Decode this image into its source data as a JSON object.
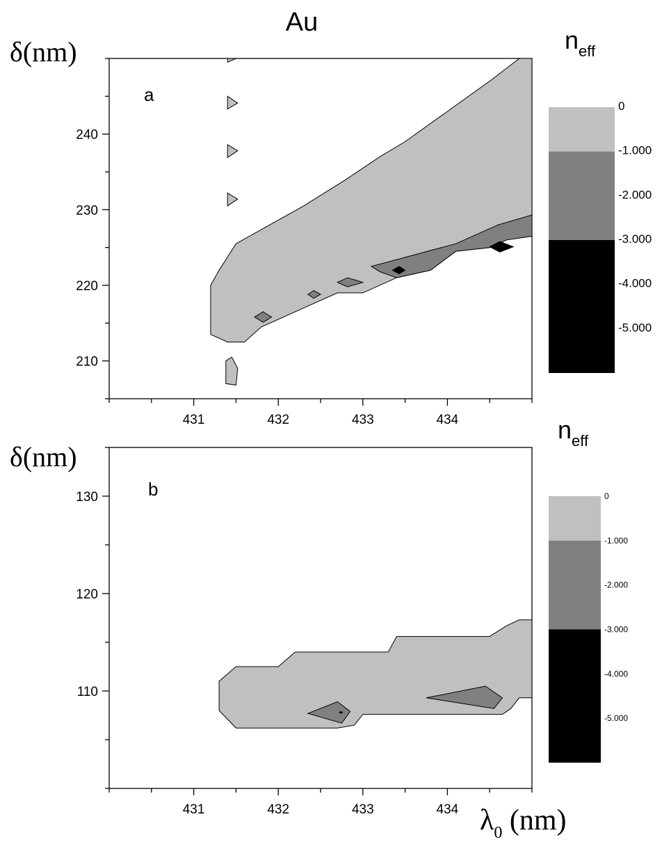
{
  "title": "Au",
  "chart_data": [
    {
      "type": "contour",
      "panel_label": "a",
      "xlabel": "",
      "ylabel": "δ(nm)",
      "xlim": [
        430.0,
        435.0
      ],
      "ylim": [
        205.0,
        250.0
      ],
      "x_ticks": [
        431,
        432,
        433,
        434
      ],
      "y_ticks": [
        210,
        220,
        230,
        240
      ],
      "colorbar": {
        "title": "n",
        "title_sub": "eff",
        "labels": [
          "0",
          "-1.000",
          "-2.000",
          "-3.000",
          "-4.000",
          "-5.000"
        ],
        "bands": [
          {
            "from": 0,
            "to": -1,
            "color": "#c0c0c0"
          },
          {
            "from": -1,
            "to": -3,
            "color": "#808080"
          },
          {
            "from": -3,
            "to": -6,
            "color": "#000000"
          }
        ]
      },
      "regions": [
        {
          "level": "0 to -1",
          "color": "#c0c0c0",
          "points": [
            [
              431.2,
              213.5
            ],
            [
              431.2,
              220
            ],
            [
              431.3,
              222
            ],
            [
              431.5,
              225.5
            ],
            [
              431.9,
              228
            ],
            [
              432.3,
              230.5
            ],
            [
              432.8,
              234
            ],
            [
              433.2,
              237
            ],
            [
              433.5,
              239
            ],
            [
              434.0,
              243
            ],
            [
              434.5,
              247
            ],
            [
              434.85,
              250
            ],
            [
              435.0,
              250
            ],
            [
              435.0,
              226.5
            ],
            [
              434.7,
              226
            ],
            [
              434.5,
              225
            ],
            [
              434.1,
              224.5
            ],
            [
              433.8,
              222
            ],
            [
              433.4,
              221
            ],
            [
              433.0,
              219
            ],
            [
              432.7,
              219
            ],
            [
              432.3,
              217
            ],
            [
              431.8,
              214.5
            ],
            [
              431.6,
              212.5
            ],
            [
              431.4,
              212.5
            ]
          ]
        },
        {
          "level": "0 to -1",
          "color": "#c0c0c0",
          "points": [
            [
              431.38,
              207
            ],
            [
              431.38,
              210
            ],
            [
              431.45,
              210.5
            ],
            [
              431.52,
              209
            ],
            [
              431.5,
              206.8
            ]
          ]
        },
        {
          "level": "0 to -1",
          "color": "#c0c0c0",
          "points": [
            [
              431.4,
              249.5
            ],
            [
              431.5,
              250
            ],
            [
              431.4,
              250
            ]
          ]
        },
        {
          "level": "0 to -1",
          "color": "#c0c0c0",
          "points": [
            [
              431.4,
              243.3
            ],
            [
              431.4,
              245
            ],
            [
              431.52,
              244.1
            ]
          ]
        },
        {
          "level": "0 to -1",
          "color": "#c0c0c0",
          "points": [
            [
              431.4,
              236.9
            ],
            [
              431.4,
              238.6
            ],
            [
              431.52,
              237.8
            ]
          ]
        },
        {
          "level": "0 to -1",
          "color": "#c0c0c0",
          "points": [
            [
              431.4,
              230.5
            ],
            [
              431.4,
              232.2
            ],
            [
              431.52,
              231.4
            ]
          ]
        },
        {
          "level": "-1 to -3",
          "color": "#808080",
          "points": [
            [
              433.1,
              222.5
            ],
            [
              433.6,
              224
            ],
            [
              434.1,
              225.5
            ],
            [
              434.6,
              228
            ],
            [
              435.0,
              229.3
            ],
            [
              435.0,
              226.5
            ],
            [
              434.7,
              226
            ],
            [
              434.5,
              225
            ],
            [
              434.1,
              224.5
            ],
            [
              433.8,
              222
            ],
            [
              433.4,
              221
            ],
            [
              433.2,
              221.8
            ]
          ]
        },
        {
          "level": "-1 to -3",
          "color": "#808080",
          "points": [
            [
              431.72,
              215.8
            ],
            [
              431.82,
              216.5
            ],
            [
              431.92,
              215.8
            ],
            [
              431.82,
              215.1
            ]
          ]
        },
        {
          "level": "-1 to -3",
          "color": "#808080",
          "points": [
            [
              432.35,
              218.8
            ],
            [
              432.42,
              219.3
            ],
            [
              432.5,
              218.8
            ],
            [
              432.42,
              218.3
            ]
          ]
        },
        {
          "level": "-1 to -3",
          "color": "#808080",
          "points": [
            [
              432.7,
              220.4
            ],
            [
              432.82,
              221
            ],
            [
              433.0,
              220.4
            ],
            [
              432.82,
              219.8
            ]
          ]
        },
        {
          "level": "-3 to -6",
          "color": "#000000",
          "points": [
            [
              433.35,
              222
            ],
            [
              433.43,
              222.5
            ],
            [
              433.5,
              222
            ],
            [
              433.43,
              221.5
            ]
          ]
        },
        {
          "level": "-3 to -6",
          "color": "#000000",
          "points": [
            [
              434.5,
              225.1
            ],
            [
              434.62,
              225.8
            ],
            [
              434.78,
              225.1
            ],
            [
              434.62,
              224.4
            ]
          ]
        }
      ]
    },
    {
      "type": "contour",
      "panel_label": "b",
      "xlabel": "λ",
      "xlabel_sub": "0",
      "xlabel_unit": " (nm)",
      "ylabel": "δ(nm)",
      "xlim": [
        430.0,
        435.0
      ],
      "ylim": [
        100.0,
        135.0
      ],
      "x_ticks": [
        431,
        432,
        433,
        434
      ],
      "y_ticks": [
        110,
        120,
        130
      ],
      "colorbar": {
        "title": "n",
        "title_sub": "eff",
        "labels": [
          "0",
          "-1.000",
          "-2.000",
          "-3.000",
          "-4.000",
          "-5.000"
        ],
        "bands": [
          {
            "from": 0,
            "to": -1,
            "color": "#c0c0c0"
          },
          {
            "from": -1,
            "to": -3,
            "color": "#808080"
          },
          {
            "from": -3,
            "to": -6,
            "color": "#000000"
          }
        ]
      },
      "regions": [
        {
          "level": "0 to -1",
          "color": "#c0c0c0",
          "points": [
            [
              431.3,
              108
            ],
            [
              431.3,
              111
            ],
            [
              431.5,
              112.5
            ],
            [
              432.0,
              112.5
            ],
            [
              432.2,
              114
            ],
            [
              433.3,
              114
            ],
            [
              433.4,
              115.6
            ],
            [
              434.5,
              115.6
            ],
            [
              434.7,
              116.7
            ],
            [
              434.85,
              117.3
            ],
            [
              435.0,
              117.3
            ],
            [
              435.0,
              109.3
            ],
            [
              434.85,
              109.3
            ],
            [
              434.75,
              108.2
            ],
            [
              434.65,
              107.6
            ],
            [
              433.0,
              107.6
            ],
            [
              432.9,
              106.5
            ],
            [
              432.7,
              106.2
            ],
            [
              431.5,
              106.2
            ]
          ]
        },
        {
          "level": "-1 to -3",
          "color": "#808080",
          "points": [
            [
              432.35,
              107.7
            ],
            [
              432.7,
              108.9
            ],
            [
              432.85,
              107.9
            ],
            [
              432.75,
              106.7
            ]
          ]
        },
        {
          "level": "-1 to -3",
          "color": "#808080",
          "points": [
            [
              433.75,
              109.3
            ],
            [
              434.45,
              110.5
            ],
            [
              434.65,
              109.3
            ],
            [
              434.55,
              108.2
            ]
          ]
        },
        {
          "level": "-3 to -6",
          "color": "#000000",
          "points": [
            [
              432.72,
              107.8
            ],
            [
              432.74,
              107.9
            ],
            [
              432.76,
              107.8
            ],
            [
              432.74,
              107.7
            ]
          ]
        }
      ]
    }
  ]
}
